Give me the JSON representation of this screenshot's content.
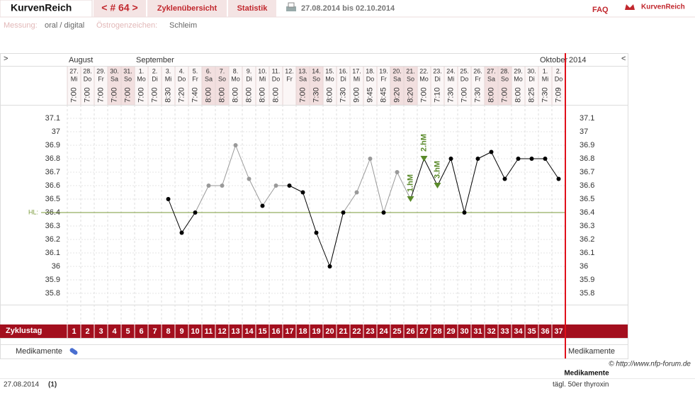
{
  "header": {
    "logo": "KurvenReich",
    "cycle_nav": "< # 64 >",
    "tabs": [
      "Zyklenübersicht",
      "Statistik"
    ],
    "date_range": "27.08.2014 bis 02.10.2014",
    "faq": "FAQ",
    "brand": "KurvenReich"
  },
  "settings": {
    "measurement_label": "Messung:",
    "measurement": "oral / digital",
    "estrogen_label": "Östrogenzeichen:",
    "estrogen": "Schleim"
  },
  "chart_data": {
    "type": "line",
    "nav_left": ">",
    "nav_right": "<",
    "months": [
      "August",
      "September",
      "Oktober"
    ],
    "year": "2014",
    "dates": [
      "27.",
      "28.",
      "29.",
      "30.",
      "31.",
      "1.",
      "2.",
      "3.",
      "4.",
      "5.",
      "6.",
      "7.",
      "8.",
      "9.",
      "10.",
      "11.",
      "12.",
      "13.",
      "14.",
      "15.",
      "16.",
      "17.",
      "18.",
      "19.",
      "20.",
      "21.",
      "22.",
      "23.",
      "24.",
      "25.",
      "26.",
      "27.",
      "28.",
      "29.",
      "30.",
      "1.",
      "2."
    ],
    "weekdays": [
      "Mi",
      "Do",
      "Fr",
      "Sa",
      "So",
      "Mo",
      "Di",
      "Mi",
      "Do",
      "Fr",
      "Sa",
      "So",
      "Mo",
      "Di",
      "Mi",
      "Do",
      "Fr",
      "Sa",
      "So",
      "Mo",
      "Di",
      "Mi",
      "Do",
      "Fr",
      "Sa",
      "So",
      "Mo",
      "Di",
      "Mi",
      "Do",
      "Fr",
      "Sa",
      "So",
      "Mo",
      "Di",
      "Mi",
      "Do"
    ],
    "times": [
      "7:00",
      "7:00",
      "7:00",
      "7:00",
      "7:00",
      "7:00",
      "7:00",
      "8:30",
      "7:20",
      "7:40",
      "8:00",
      "8:00",
      "8:00",
      "8:00",
      "8:00",
      "8:00",
      null,
      "7:00",
      "7:30",
      "8:00",
      "7:30",
      "9:00",
      "9:45",
      "8:45",
      "9:20",
      "8:20",
      "7:00",
      "7:10",
      "7:30",
      "7:00",
      "7:30",
      "8:00",
      "7:00",
      "8:00",
      "8:25",
      "7:30",
      "7:09"
    ],
    "values": [
      null,
      null,
      null,
      null,
      null,
      null,
      null,
      36.5,
      36.25,
      36.4,
      36.6,
      36.6,
      36.9,
      36.65,
      36.45,
      36.6,
      36.6,
      36.55,
      36.25,
      36.0,
      36.4,
      36.55,
      36.8,
      36.4,
      36.7,
      36.5,
      36.8,
      36.6,
      36.8,
      36.4,
      36.8,
      36.85,
      36.65,
      36.8,
      36.8,
      36.8,
      36.65
    ],
    "excluded": [
      false,
      false,
      false,
      false,
      false,
      false,
      false,
      false,
      false,
      false,
      true,
      true,
      true,
      true,
      false,
      true,
      false,
      false,
      false,
      false,
      false,
      true,
      true,
      false,
      true,
      false,
      false,
      false,
      false,
      false,
      false,
      false,
      false,
      false,
      false,
      false,
      false
    ],
    "markers": [
      null,
      null,
      null,
      null,
      null,
      null,
      null,
      null,
      null,
      null,
      null,
      null,
      null,
      null,
      null,
      null,
      null,
      null,
      null,
      null,
      null,
      null,
      null,
      null,
      null,
      "1.hM",
      "2.hM",
      "3.hM",
      null,
      null,
      null,
      null,
      null,
      null,
      null,
      null,
      null
    ],
    "color": "#000000",
    "excluded_color": "#999999",
    "marker_color": "#5a8a2a",
    "hl": {
      "label": "HL:",
      "value": 36.4,
      "color": "#7a9a3a"
    },
    "ylim": [
      35.7,
      37.2
    ],
    "yticks": [
      35.8,
      35.9,
      36,
      36.1,
      36.2,
      36.3,
      36.4,
      36.5,
      36.6,
      36.7,
      36.8,
      36.9,
      37,
      37.1
    ],
    "grid": true,
    "cycle_day_label": "Zyklustag",
    "cycle_days": [
      1,
      2,
      3,
      4,
      5,
      6,
      7,
      8,
      9,
      10,
      11,
      12,
      13,
      14,
      15,
      16,
      17,
      18,
      19,
      20,
      21,
      22,
      23,
      24,
      25,
      26,
      27,
      28,
      29,
      30,
      31,
      32,
      33,
      34,
      35,
      36,
      37
    ],
    "medication_label": "Medikamente",
    "medication_label_right": "Medikamente"
  },
  "footer": {
    "copyright": "© http://www.nfp-forum.de",
    "medication_title": "Medikamente",
    "start_date": "27.08.2014",
    "cycle_no": "(1)",
    "medication_text": "tägl. 50er thyroxin"
  }
}
